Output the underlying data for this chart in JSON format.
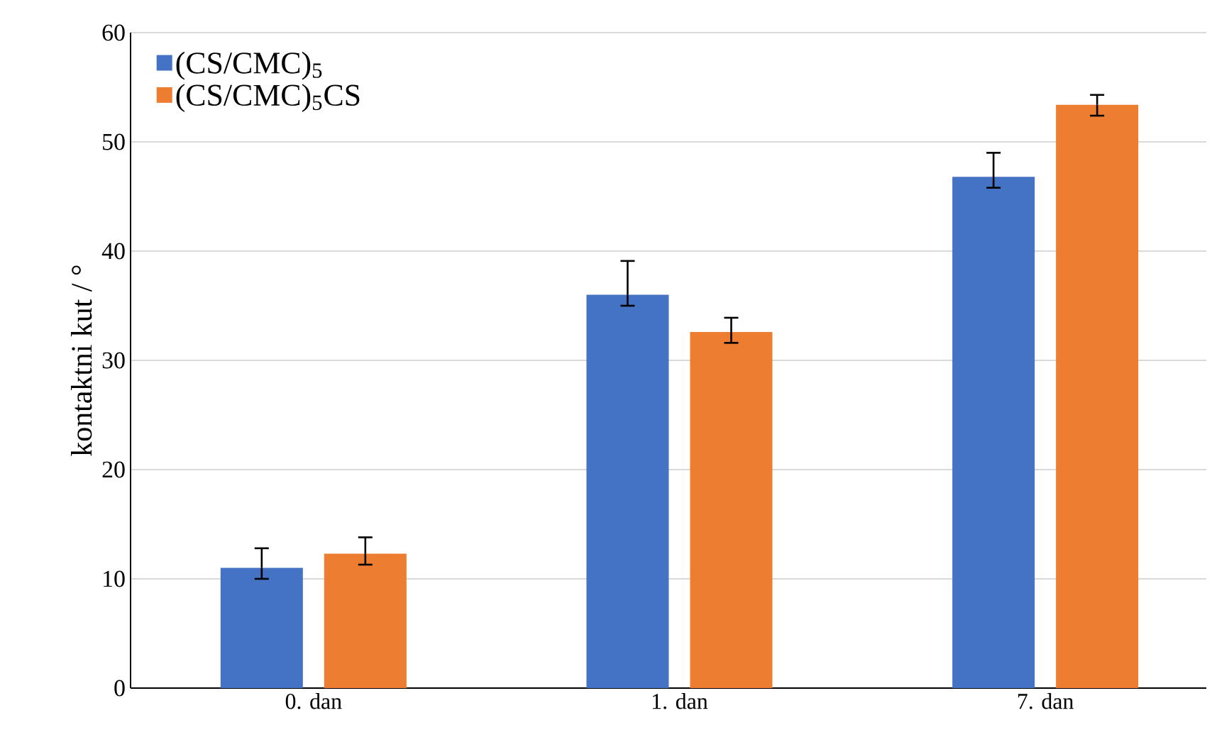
{
  "chart_data": {
    "type": "bar",
    "ylabel": "kontaktni kut / °",
    "categories": [
      "0. dan",
      "1. dan",
      "7. dan"
    ],
    "series": [
      {
        "name": "(CS/CMC)$_{5}$",
        "color": "#4472c4",
        "values": [
          11.0,
          36.0,
          46.8
        ],
        "errors": [
          [
            10.0,
            12.8
          ],
          [
            35.0,
            39.1
          ],
          [
            45.8,
            49.0
          ]
        ]
      },
      {
        "name": "(CS/CMC)$_{5}$CS",
        "color": "#ed7d31",
        "values": [
          12.3,
          32.6,
          53.4
        ],
        "errors": [
          [
            11.3,
            13.8
          ],
          [
            31.6,
            33.9
          ],
          [
            52.4,
            54.3
          ]
        ]
      }
    ],
    "ylim": [
      0,
      60
    ],
    "yticks": [
      0,
      10,
      20,
      30,
      40,
      50,
      60
    ],
    "grid": "y",
    "legend": "top left"
  }
}
